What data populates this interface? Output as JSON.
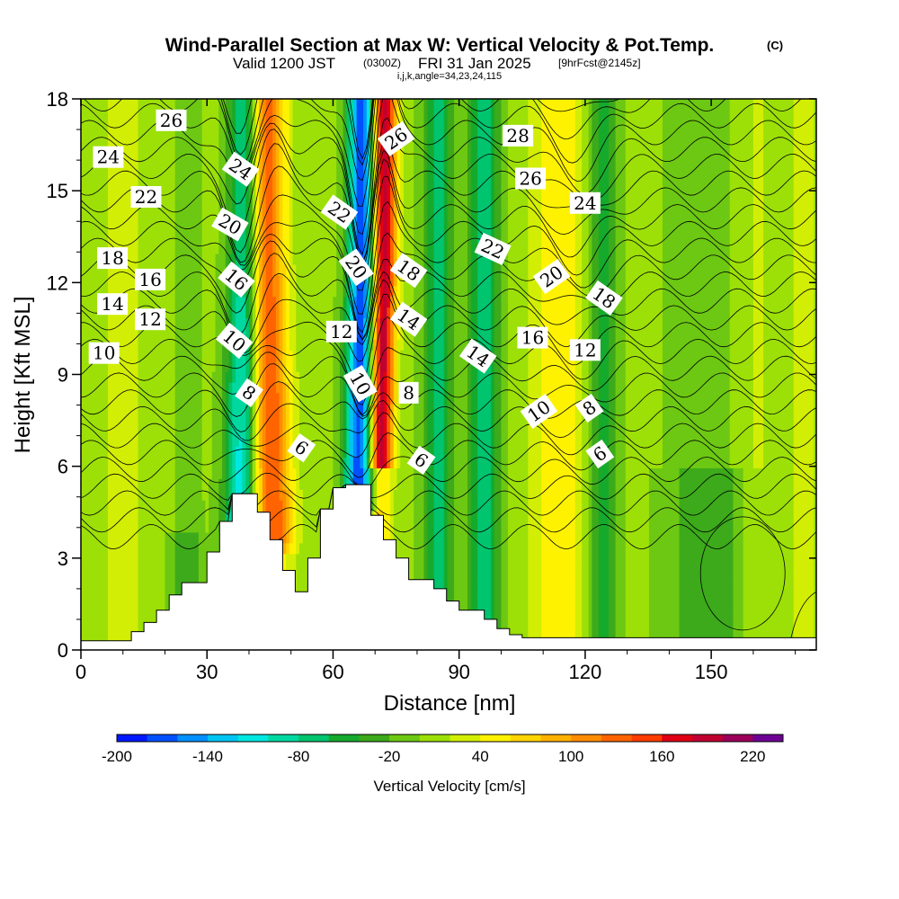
{
  "chart_data": {
    "type": "heatmap",
    "title": "Wind-Parallel Section at Max W: Vertical Velocity & Pot.Temp.",
    "title_mark": "(C)",
    "subtitle_valid": "Valid 1200 JST",
    "subtitle_utc": "(0300Z)",
    "subtitle_date": "FRI 31 Jan 2025",
    "subtitle_fcst": "[9hrFcst@2145z]",
    "subtitle_indices": "i,j,k,angle=34,23,24,115",
    "xlabel": "Distance [nm]",
    "ylabel": "Height [Kft MSL]",
    "xlim": [
      0,
      175
    ],
    "ylim": [
      0,
      18
    ],
    "x_ticks": [
      "0",
      "30",
      "60",
      "90",
      "120",
      "150"
    ],
    "y_ticks": [
      "0",
      "3",
      "6",
      "9",
      "12",
      "15",
      "18"
    ],
    "colorbar": {
      "label": "Vertical Velocity [cm/s]",
      "tick_labels": [
        "-200",
        "-140",
        "-80",
        "-20",
        "40",
        "100",
        "160",
        "220"
      ],
      "levels": [
        -200,
        -180,
        -160,
        -140,
        -120,
        -100,
        -80,
        -60,
        -40,
        -20,
        0,
        20,
        40,
        60,
        80,
        100,
        120,
        140,
        160,
        180,
        200,
        220,
        240
      ],
      "colors": [
        "#0018ff",
        "#0050ff",
        "#0090ff",
        "#00c4f2",
        "#00e6e0",
        "#00d8a0",
        "#00c46e",
        "#16aa2c",
        "#3caa1a",
        "#6cc812",
        "#9ce008",
        "#d2ee04",
        "#fff200",
        "#ffd400",
        "#ffb000",
        "#ff8c00",
        "#ff6400",
        "#ff3c00",
        "#e00014",
        "#c00030",
        "#9c005a",
        "#6e0096"
      ]
    },
    "theta_contour_labels": [
      {
        "text": "26",
        "x": 21.5,
        "y": 17.3,
        "rot": 0
      },
      {
        "text": "24",
        "x": 6.5,
        "y": 16.1,
        "rot": 0
      },
      {
        "text": "22",
        "x": 15.5,
        "y": 14.8,
        "rot": 0
      },
      {
        "text": "18",
        "x": 7.5,
        "y": 12.8,
        "rot": 0
      },
      {
        "text": "16",
        "x": 16.5,
        "y": 12.1,
        "rot": 0
      },
      {
        "text": "14",
        "x": 7.5,
        "y": 11.3,
        "rot": 0
      },
      {
        "text": "12",
        "x": 16.5,
        "y": 10.8,
        "rot": 0
      },
      {
        "text": "10",
        "x": 5.5,
        "y": 9.7,
        "rot": 0
      },
      {
        "text": "24",
        "x": 38,
        "y": 15.7,
        "rot": 35
      },
      {
        "text": "20",
        "x": 35.5,
        "y": 13.9,
        "rot": 30
      },
      {
        "text": "16",
        "x": 37,
        "y": 12.1,
        "rot": 40
      },
      {
        "text": "10",
        "x": 36.5,
        "y": 10.1,
        "rot": 40
      },
      {
        "text": "8",
        "x": 40,
        "y": 8.4,
        "rot": 35
      },
      {
        "text": "6",
        "x": 52.5,
        "y": 6.6,
        "rot": 35
      },
      {
        "text": "22",
        "x": 61.5,
        "y": 14.3,
        "rot": 35
      },
      {
        "text": "20",
        "x": 65.5,
        "y": 12.5,
        "rot": 55
      },
      {
        "text": "12",
        "x": 62,
        "y": 10.4,
        "rot": 0
      },
      {
        "text": "10",
        "x": 66.5,
        "y": 8.7,
        "rot": 60
      },
      {
        "text": "26",
        "x": 75,
        "y": 16.7,
        "rot": -35
      },
      {
        "text": "18",
        "x": 78,
        "y": 12.4,
        "rot": 35
      },
      {
        "text": "14",
        "x": 78,
        "y": 10.8,
        "rot": 35
      },
      {
        "text": "8",
        "x": 78,
        "y": 8.4,
        "rot": 0
      },
      {
        "text": "6",
        "x": 81,
        "y": 6.2,
        "rot": 35
      },
      {
        "text": "28",
        "x": 104,
        "y": 16.8,
        "rot": 0
      },
      {
        "text": "26",
        "x": 107,
        "y": 15.4,
        "rot": 0
      },
      {
        "text": "24",
        "x": 120,
        "y": 14.6,
        "rot": 0
      },
      {
        "text": "22",
        "x": 98,
        "y": 13.1,
        "rot": 25
      },
      {
        "text": "20",
        "x": 112,
        "y": 12.2,
        "rot": -35
      },
      {
        "text": "18",
        "x": 124.5,
        "y": 11.5,
        "rot": 35
      },
      {
        "text": "16",
        "x": 107.5,
        "y": 10.2,
        "rot": 0
      },
      {
        "text": "12",
        "x": 120,
        "y": 9.8,
        "rot": 0
      },
      {
        "text": "14",
        "x": 94.5,
        "y": 9.6,
        "rot": 35
      },
      {
        "text": "10",
        "x": 109,
        "y": 7.8,
        "rot": -35
      },
      {
        "text": "8",
        "x": 121,
        "y": 7.9,
        "rot": -35
      },
      {
        "text": "6",
        "x": 123.5,
        "y": 6.4,
        "rot": -35
      }
    ],
    "terrain_profile": {
      "x": [
        0,
        12,
        15,
        18,
        21,
        24,
        30,
        33,
        36,
        42,
        45,
        48,
        51,
        54,
        57,
        60,
        63,
        69,
        72,
        75,
        78,
        84,
        87,
        90,
        96,
        99,
        102,
        105,
        175
      ],
      "height": [
        0.3,
        0.6,
        0.9,
        1.3,
        1.8,
        2.2,
        3.2,
        4.2,
        5.1,
        4.5,
        3.6,
        2.6,
        1.9,
        3.0,
        4.6,
        5.3,
        5.4,
        4.4,
        3.6,
        3.0,
        2.3,
        2.0,
        1.6,
        1.3,
        1.0,
        0.7,
        0.5,
        0.4,
        0.4
      ]
    }
  }
}
